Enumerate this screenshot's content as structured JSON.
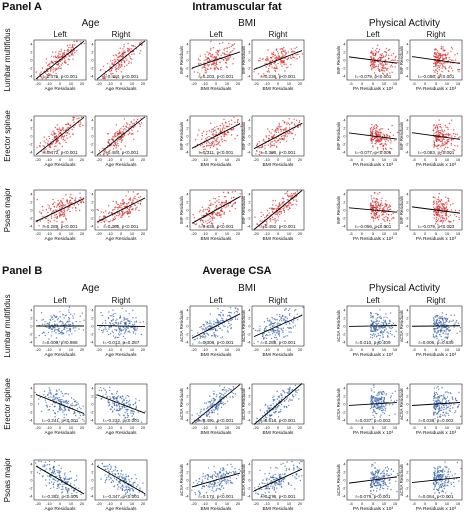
{
  "panels": [
    {
      "label": "Panel A",
      "title": "Intramuscular fat",
      "dot_color": "#d42a2a",
      "groups": [
        {
          "header": "Age",
          "xlabel": "Age Residuals",
          "ylabel": "",
          "xticks": [
            "-20",
            "-10",
            "0",
            "10",
            "20"
          ]
        },
        {
          "header": "BMI",
          "xlabel": "BMI Residuals",
          "ylabel": "IMF Residuals",
          "xticks": [
            "-20",
            "-10",
            "0",
            "10",
            "20"
          ]
        },
        {
          "header": "Physical Activity",
          "xlabel": "PA Residuals x 10³",
          "ylabel": "IMF Residuals",
          "xticks": [
            "-5",
            "0",
            "5",
            "10",
            "15"
          ]
        }
      ],
      "sides": [
        "Left",
        "Right"
      ],
      "rows": [
        "Lumbar multifidus",
        "Erector spinae",
        "Psoas major"
      ],
      "yticks": [
        "4",
        "2",
        "0",
        "-2",
        "-4"
      ]
    },
    {
      "label": "Panel B",
      "title": "Average CSA",
      "dot_color": "#3a64a8",
      "groups": [
        {
          "header": "Age",
          "xlabel": "Age Residuals",
          "ylabel": "",
          "xticks": [
            "-20",
            "-10",
            "0",
            "10",
            "20"
          ]
        },
        {
          "header": "BMI",
          "xlabel": "BMI Residuals",
          "ylabel": "aCSA Residuals",
          "xticks": [
            "-20",
            "-10",
            "0",
            "10",
            "20"
          ]
        },
        {
          "header": "Physical Activity",
          "xlabel": "PA Residuals x 10³",
          "ylabel": "aCSA Residuals",
          "xticks": [
            "-5",
            "0",
            "5",
            "10",
            "15"
          ]
        }
      ],
      "sides": [
        "Left",
        "Right"
      ],
      "rows": [
        "Lumbar multifidus",
        "Erector spinae",
        "Psoas major"
      ],
      "yticks": [
        "4",
        "2",
        "0",
        "-2",
        "-4"
      ]
    }
  ],
  "chart_data": [
    {
      "type": "scatter",
      "title": "Intramuscular fat",
      "panel": "Panel A",
      "stats": [
        {
          "row": "Lumbar multifidus",
          "predictor": "Age",
          "side": "Left",
          "label": "r=0.476, p<0.001",
          "r": 0.476
        },
        {
          "row": "Lumbar multifidus",
          "predictor": "Age",
          "side": "Right",
          "label": "r=0.484, p<0.001",
          "r": 0.484
        },
        {
          "row": "Lumbar multifidus",
          "predictor": "BMI",
          "side": "Left",
          "label": "r=0.203, p<0.001",
          "r": 0.203
        },
        {
          "row": "Lumbar multifidus",
          "predictor": "BMI",
          "side": "Right",
          "label": "r=0.238, p<0.001",
          "r": 0.238
        },
        {
          "row": "Lumbar multifidus",
          "predictor": "Physical Activity",
          "side": "Left",
          "label": "r=-0.079, p<0.001",
          "r": -0.079
        },
        {
          "row": "Lumbar multifidus",
          "predictor": "Physical Activity",
          "side": "Right",
          "label": "r=-0.086, p<0.001",
          "r": -0.086
        },
        {
          "row": "Erector spinae",
          "predictor": "Age",
          "side": "Left",
          "label": "r=0.472, p<0.001",
          "r": 0.472
        },
        {
          "row": "Erector spinae",
          "predictor": "Age",
          "side": "Right",
          "label": "r=0.484, p<0.001",
          "r": 0.484
        },
        {
          "row": "Erector spinae",
          "predictor": "BMI",
          "side": "Left",
          "label": "r=0.311, p<0.001",
          "r": 0.311
        },
        {
          "row": "Erector spinae",
          "predictor": "BMI",
          "side": "Right",
          "label": "r=0.320, p<0.001",
          "r": 0.32
        },
        {
          "row": "Erector spinae",
          "predictor": "Physical Activity",
          "side": "Left",
          "label": "r=-0.077, p<0.001",
          "r": -0.077
        },
        {
          "row": "Erector spinae",
          "predictor": "Physical Activity",
          "side": "Right",
          "label": "r=-0.083, p<0.001",
          "r": -0.083
        },
        {
          "row": "Psoas major",
          "predictor": "Age",
          "side": "Left",
          "label": "r=0.289, p<0.001",
          "r": 0.289
        },
        {
          "row": "Psoas major",
          "predictor": "Age",
          "side": "Right",
          "label": "r=0.305, p<0.001",
          "r": 0.305
        },
        {
          "row": "Psoas major",
          "predictor": "BMI",
          "side": "Left",
          "label": "r=0.336, p<0.001",
          "r": 0.336
        },
        {
          "row": "Psoas major",
          "predictor": "BMI",
          "side": "Right",
          "label": "r=0.492, p<0.001",
          "r": 0.492
        },
        {
          "row": "Psoas major",
          "predictor": "Physical Activity",
          "side": "Left",
          "label": "r=-0.056, p<0.001",
          "r": -0.056
        },
        {
          "row": "Psoas major",
          "predictor": "Physical Activity",
          "side": "Right",
          "label": "r=-0.079, p<0.001",
          "r": -0.079
        }
      ]
    },
    {
      "type": "scatter",
      "title": "Average CSA",
      "panel": "Panel B",
      "stats": [
        {
          "row": "Lumbar multifidus",
          "predictor": "Age",
          "side": "Left",
          "label": "r=0.000, p=0.986",
          "r": 0.0
        },
        {
          "row": "Lumbar multifidus",
          "predictor": "Age",
          "side": "Right",
          "label": "r=-0.013, p=0.287",
          "r": -0.013
        },
        {
          "row": "Lumbar multifidus",
          "predictor": "BMI",
          "side": "Left",
          "label": "r=0.308, p<0.001",
          "r": 0.308
        },
        {
          "row": "Lumbar multifidus",
          "predictor": "BMI",
          "side": "Right",
          "label": "r=0.268, p<0.001",
          "r": 0.268
        },
        {
          "row": "Lumbar multifidus",
          "predictor": "Physical Activity",
          "side": "Left",
          "label": "r=0.010, p=0.409",
          "r": 0.01
        },
        {
          "row": "Lumbar multifidus",
          "predictor": "Physical Activity",
          "side": "Right",
          "label": "r=0.006, p=0.639",
          "r": 0.006
        },
        {
          "row": "Erector spinae",
          "predictor": "Age",
          "side": "Left",
          "label": "r=-0.241, p<0.001",
          "r": -0.241
        },
        {
          "row": "Erector spinae",
          "predictor": "Age",
          "side": "Right",
          "label": "r=-0.232, p<0.001",
          "r": -0.232
        },
        {
          "row": "Erector spinae",
          "predictor": "BMI",
          "side": "Left",
          "label": "r=0.491, p<0.001",
          "r": 0.491
        },
        {
          "row": "Erector spinae",
          "predictor": "BMI",
          "side": "Right",
          "label": "r=0.518, p<0.001",
          "r": 0.518
        },
        {
          "row": "Erector spinae",
          "predictor": "Physical Activity",
          "side": "Left",
          "label": "r=0.037, p=0.002",
          "r": 0.037
        },
        {
          "row": "Erector spinae",
          "predictor": "Physical Activity",
          "side": "Right",
          "label": "r=0.038, p=0.002",
          "r": 0.038
        },
        {
          "row": "Psoas major",
          "predictor": "Age",
          "side": "Left",
          "label": "r=-0.352, p<0.001",
          "r": -0.352
        },
        {
          "row": "Psoas major",
          "predictor": "Age",
          "side": "Right",
          "label": "r=-0.347, p<0.001",
          "r": -0.347
        },
        {
          "row": "Psoas major",
          "predictor": "BMI",
          "side": "Left",
          "label": "r=0.174, p<0.001",
          "r": 0.174
        },
        {
          "row": "Psoas major",
          "predictor": "BMI",
          "side": "Right",
          "label": "r=0.276, p<0.001",
          "r": 0.276
        },
        {
          "row": "Psoas major",
          "predictor": "Physical Activity",
          "side": "Left",
          "label": "r=0.079, p<0.001",
          "r": 0.079
        },
        {
          "row": "Psoas major",
          "predictor": "Physical Activity",
          "side": "Right",
          "label": "r=0.064, p<0.001",
          "r": 0.064
        }
      ]
    }
  ]
}
